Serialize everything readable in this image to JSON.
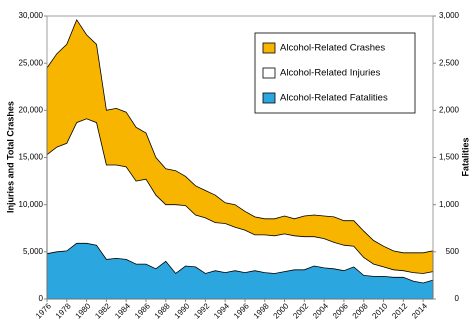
{
  "chart_data": {
    "type": "area",
    "x": [
      1976,
      1977,
      1978,
      1979,
      1980,
      1981,
      1982,
      1983,
      1984,
      1985,
      1986,
      1987,
      1988,
      1989,
      1990,
      1991,
      1992,
      1993,
      1994,
      1995,
      1996,
      1997,
      1998,
      1999,
      2000,
      2001,
      2002,
      2003,
      2004,
      2005,
      2006,
      2007,
      2008,
      2009,
      2010,
      2011,
      2012,
      2013,
      2014,
      2015
    ],
    "series": [
      {
        "name": "Alcohol-Related Crashes",
        "color": "#f7b500",
        "values": [
          24500,
          26000,
          27000,
          29600,
          28000,
          27000,
          20000,
          20200,
          19800,
          18200,
          17600,
          15000,
          13800,
          13600,
          13000,
          12000,
          11500,
          11000,
          10200,
          10000,
          9300,
          8700,
          8500,
          8500,
          8800,
          8500,
          8800,
          8900,
          8800,
          8700,
          8300,
          8300,
          7200,
          6200,
          5600,
          5100,
          4900,
          4900,
          4900,
          5100
        ]
      },
      {
        "name": "Alcohol-Related Injuries",
        "color": "#ffffff",
        "values": [
          15300,
          16100,
          16500,
          18700,
          19100,
          18700,
          14200,
          14200,
          14000,
          12500,
          12700,
          11000,
          10000,
          10000,
          9900,
          8900,
          8600,
          8100,
          8000,
          7600,
          7300,
          6800,
          6800,
          6700,
          6900,
          6700,
          6600,
          6600,
          6400,
          6000,
          5700,
          5600,
          4400,
          3700,
          3400,
          3100,
          3000,
          2800,
          2700,
          2900
        ]
      },
      {
        "name": "Alcohol-Related Fatalities",
        "color": "#2ba6de",
        "axis": "y2",
        "values": [
          480,
          500,
          510,
          590,
          590,
          570,
          420,
          430,
          420,
          370,
          370,
          320,
          400,
          270,
          350,
          340,
          270,
          300,
          280,
          300,
          280,
          300,
          280,
          270,
          290,
          310,
          310,
          350,
          330,
          320,
          300,
          340,
          250,
          240,
          240,
          230,
          230,
          190,
          170,
          200
        ]
      }
    ],
    "xlim": [
      1976,
      2015
    ],
    "xticks": [
      1976,
      1978,
      1980,
      1982,
      1984,
      1986,
      1988,
      1990,
      1992,
      1994,
      1996,
      1998,
      2000,
      2002,
      2004,
      2006,
      2008,
      2010,
      2012,
      2014
    ],
    "ylim": [
      0,
      30000
    ],
    "yticks": [
      0,
      {
        "value": 5000,
        "label": "5,000"
      },
      {
        "value": 10000,
        "label": "10,000"
      },
      {
        "value": 15000,
        "label": "15,000"
      },
      {
        "value": 20000,
        "label": "20,000"
      },
      {
        "value": 25000,
        "label": "25,000"
      },
      {
        "value": 30000,
        "label": "30,000"
      }
    ],
    "y2lim": [
      0,
      3000
    ],
    "y2ticks": [
      0,
      500,
      {
        "value": 1000,
        "label": "1,000"
      },
      {
        "value": 1500,
        "label": "1,500"
      },
      {
        "value": 2000,
        "label": "2,000"
      },
      {
        "value": 2500,
        "label": "2,500"
      },
      {
        "value": 3000,
        "label": "3,000"
      }
    ],
    "ylabel": "Injuries and Total Crashes",
    "y2label": "Fatalities"
  }
}
